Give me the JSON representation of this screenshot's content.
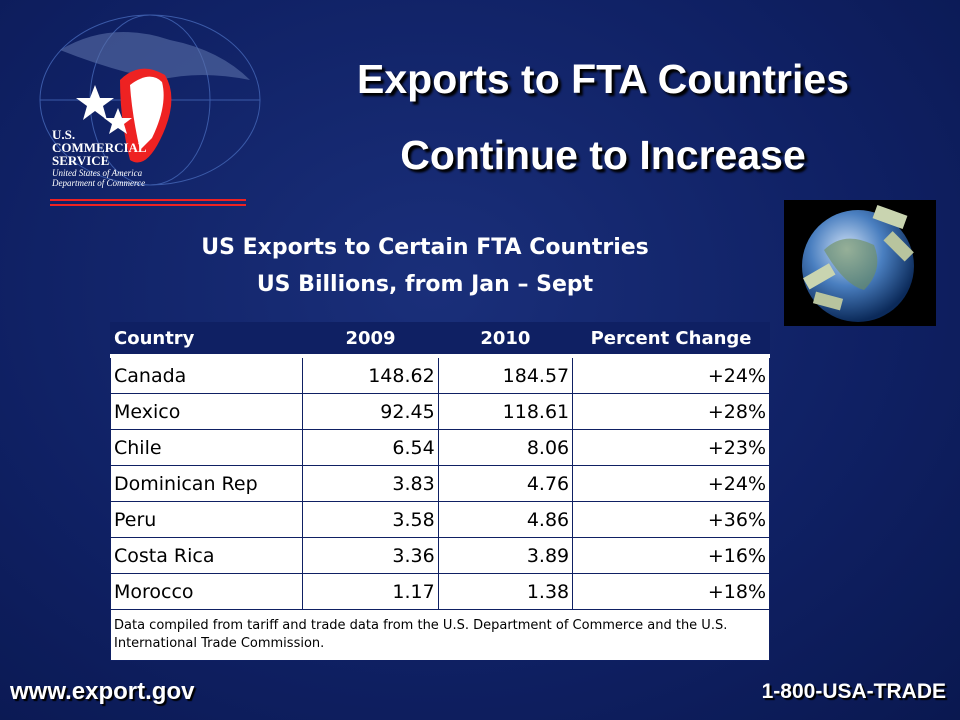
{
  "logo": {
    "line1": "U.S.",
    "line2": "COMMERCIAL",
    "line3": "SERVICE",
    "line4": "United States of America",
    "line5": "Department of Commerce"
  },
  "header": {
    "title_line1": "Exports to FTA Countries",
    "title_line2": "Continue to Increase"
  },
  "table": {
    "title": "US Exports to Certain FTA Countries",
    "subtitle": "US Billions, from Jan – Sept",
    "columns": [
      "Country",
      "2009",
      "2010",
      "Percent Change"
    ],
    "rows": [
      [
        "Canada",
        "148.62",
        "184.57",
        "+24%"
      ],
      [
        "Mexico",
        "92.45",
        "118.61",
        "+28%"
      ],
      [
        "Chile",
        "6.54",
        "8.06",
        "+23%"
      ],
      [
        "Dominican Rep",
        "3.83",
        "4.76",
        "+24%"
      ],
      [
        "Peru",
        "3.58",
        "4.86",
        "+36%"
      ],
      [
        "Costa Rica",
        "3.36",
        "3.89",
        "+16%"
      ],
      [
        "Morocco",
        "1.17",
        "1.38",
        "+18%"
      ]
    ],
    "note": "Data compiled from tariff and trade data from the U.S. Department of Commerce and the U.S. International Trade Commission."
  },
  "footer": {
    "website": "www.export.gov",
    "phone": "1-800-USA-TRADE"
  }
}
